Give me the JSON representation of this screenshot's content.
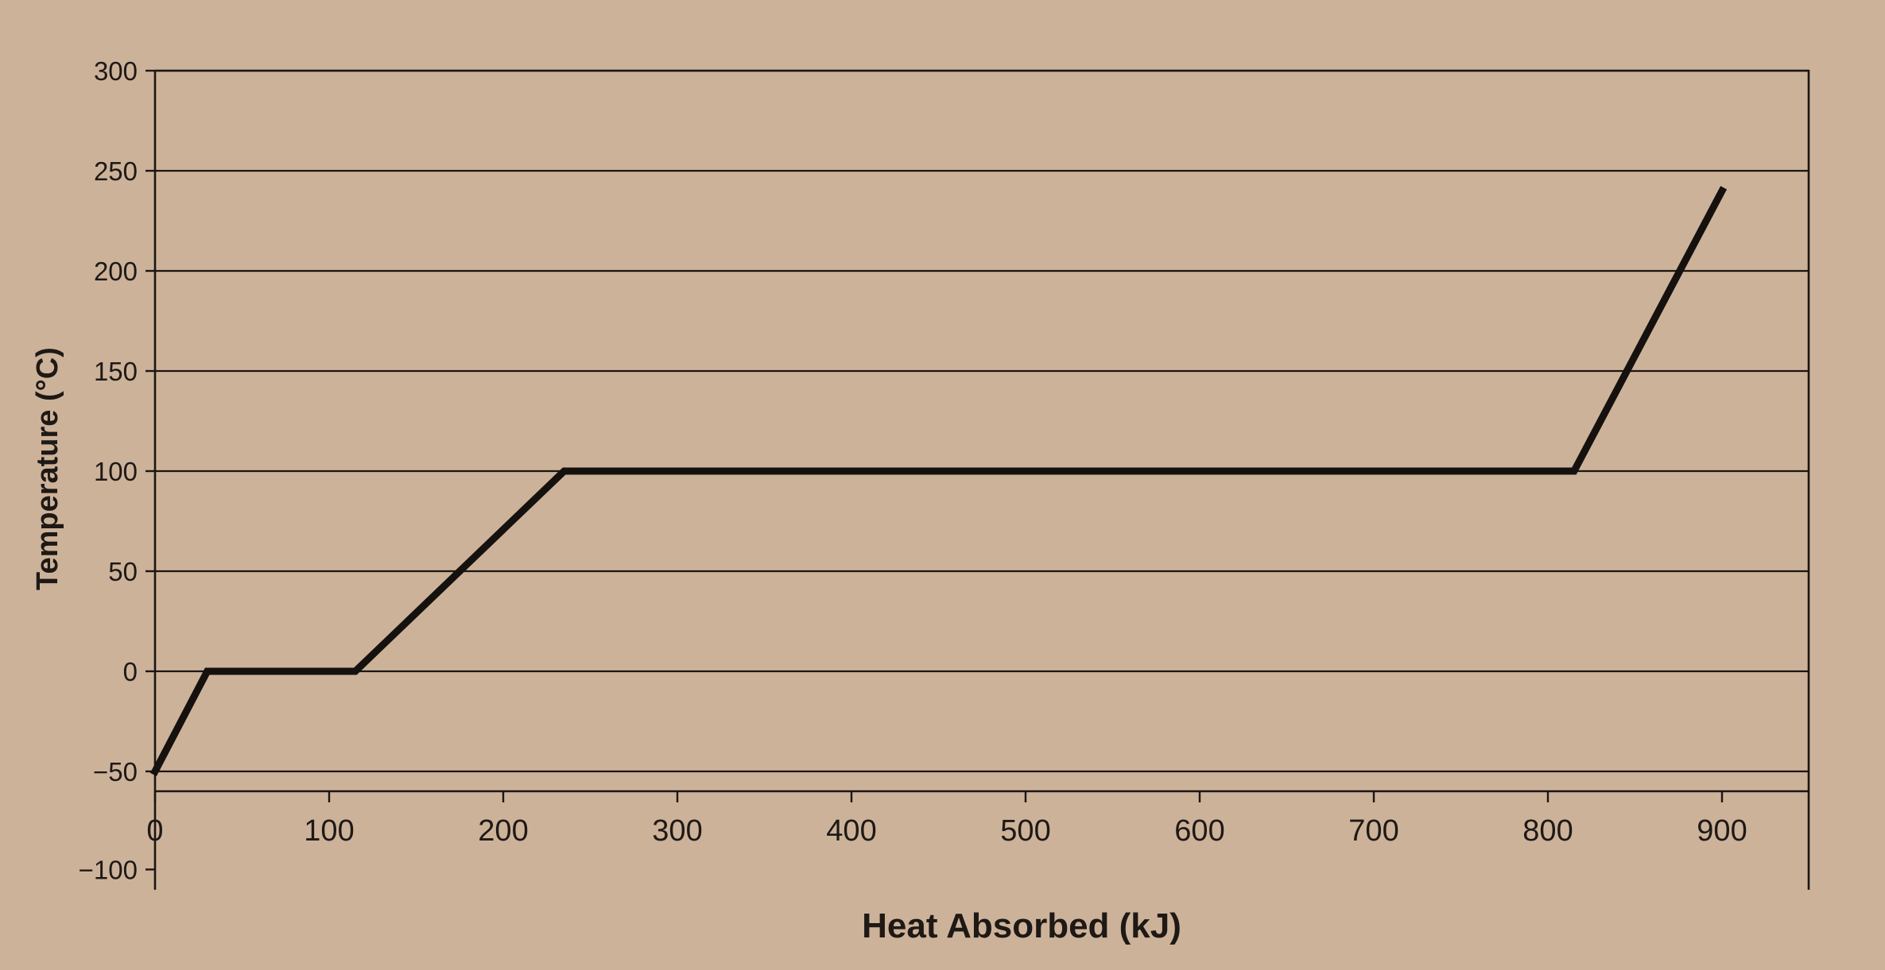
{
  "chart_data": {
    "type": "line",
    "xlabel": "Heat Absorbed (kJ)",
    "ylabel": "Temperature (°C)",
    "xlim": [
      0,
      950
    ],
    "ylim": [
      -100,
      300
    ],
    "x_ticks": [
      "0",
      "100",
      "200",
      "300",
      "400",
      "500",
      "600",
      "700",
      "800",
      "900"
    ],
    "y_ticks": [
      "300",
      "250",
      "200",
      "150",
      "100",
      "50",
      "0",
      "−50",
      "−100"
    ],
    "grid": true,
    "series": [
      {
        "x": [
          0,
          30,
          115,
          235,
          815,
          900
        ],
        "y": [
          -50,
          0,
          0,
          100,
          100,
          240
        ]
      }
    ]
  },
  "colors": {
    "background": "#cdb29a",
    "ink": "#1b1612"
  }
}
